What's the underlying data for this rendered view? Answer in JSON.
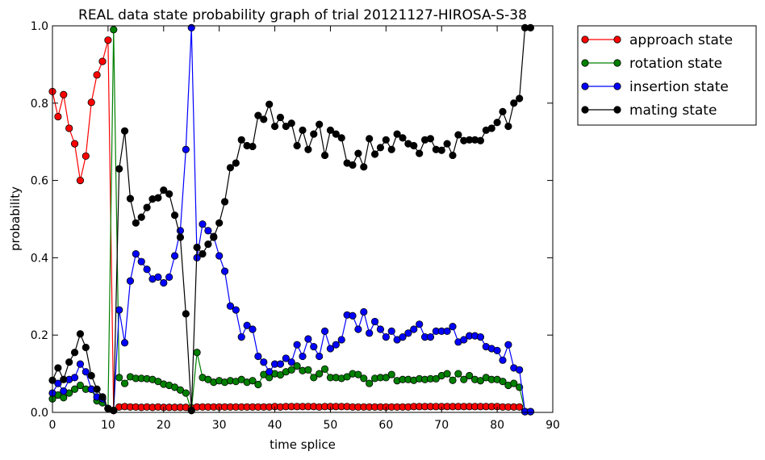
{
  "chart_data": {
    "type": "line",
    "title": "REAL data state probability graph of trial 20121127-HIROSA-S-38",
    "xlabel": "time splice",
    "ylabel": "probability",
    "xlim": [
      0,
      90
    ],
    "ylim": [
      0.0,
      1.0
    ],
    "xticks": [
      "0",
      "10",
      "20",
      "30",
      "40",
      "50",
      "60",
      "70",
      "80",
      "90"
    ],
    "yticks": [
      "0.0",
      "0.2",
      "0.4",
      "0.6",
      "0.8",
      "1.0"
    ],
    "grid": false,
    "legend_position": "outside-top-right",
    "series": [
      {
        "name": "approach state",
        "color": "#ff0000",
        "x": [
          0,
          1,
          2,
          3,
          4,
          5,
          6,
          7,
          8,
          9,
          10,
          11,
          12,
          13,
          14,
          15,
          16,
          17,
          18,
          19,
          20,
          21,
          22,
          23,
          24,
          25,
          26,
          27,
          28,
          29,
          30,
          31,
          32,
          33,
          34,
          35,
          36,
          37,
          38,
          39,
          40,
          41,
          42,
          43,
          44,
          45,
          46,
          47,
          48,
          49,
          50,
          51,
          52,
          53,
          54,
          55,
          56,
          57,
          58,
          59,
          60,
          61,
          62,
          63,
          64,
          65,
          66,
          67,
          68,
          69,
          70,
          71,
          72,
          73,
          74,
          75,
          76,
          77,
          78,
          79,
          80,
          81,
          82,
          83,
          84,
          85,
          86
        ],
        "values": [
          0.83,
          0.765,
          0.822,
          0.735,
          0.695,
          0.6,
          0.663,
          0.802,
          0.873,
          0.908,
          0.963,
          0.005,
          0.014,
          0.015,
          0.014,
          0.014,
          0.013,
          0.014,
          0.013,
          0.014,
          0.013,
          0.013,
          0.013,
          0.013,
          0.013,
          0.012,
          0.014,
          0.014,
          0.014,
          0.014,
          0.014,
          0.014,
          0.014,
          0.014,
          0.014,
          0.014,
          0.014,
          0.014,
          0.014,
          0.014,
          0.015,
          0.014,
          0.015,
          0.015,
          0.015,
          0.015,
          0.015,
          0.015,
          0.014,
          0.015,
          0.015,
          0.015,
          0.015,
          0.015,
          0.014,
          0.014,
          0.014,
          0.014,
          0.014,
          0.014,
          0.014,
          0.014,
          0.014,
          0.014,
          0.014,
          0.015,
          0.015,
          0.015,
          0.015,
          0.015,
          0.015,
          0.015,
          0.015,
          0.015,
          0.015,
          0.015,
          0.015,
          0.015,
          0.015,
          0.015,
          0.015,
          0.014,
          0.014,
          0.014,
          0.014,
          0.002,
          0.002
        ]
      },
      {
        "name": "rotation state",
        "color": "#008000",
        "x": [
          0,
          1,
          2,
          3,
          4,
          5,
          6,
          7,
          8,
          9,
          10,
          11,
          12,
          13,
          14,
          15,
          16,
          17,
          18,
          19,
          20,
          21,
          22,
          23,
          24,
          25,
          26,
          27,
          28,
          29,
          30,
          31,
          32,
          33,
          34,
          35,
          36,
          37,
          38,
          39,
          40,
          41,
          42,
          43,
          44,
          45,
          46,
          47,
          48,
          49,
          50,
          51,
          52,
          53,
          54,
          55,
          56,
          57,
          58,
          59,
          60,
          61,
          62,
          63,
          64,
          65,
          66,
          67,
          68,
          69,
          70,
          71,
          72,
          73,
          74,
          75,
          76,
          77,
          78,
          79,
          80,
          81,
          82,
          83,
          84,
          85,
          86
        ],
        "values": [
          0.035,
          0.045,
          0.038,
          0.05,
          0.06,
          0.07,
          0.06,
          0.06,
          0.03,
          0.025,
          0.01,
          0.99,
          0.09,
          0.075,
          0.092,
          0.088,
          0.088,
          0.087,
          0.085,
          0.08,
          0.073,
          0.07,
          0.065,
          0.058,
          0.05,
          0.005,
          0.155,
          0.09,
          0.085,
          0.078,
          0.082,
          0.078,
          0.082,
          0.08,
          0.085,
          0.078,
          0.082,
          0.072,
          0.098,
          0.09,
          0.1,
          0.097,
          0.105,
          0.11,
          0.12,
          0.108,
          0.11,
          0.09,
          0.1,
          0.112,
          0.09,
          0.09,
          0.088,
          0.092,
          0.1,
          0.098,
          0.088,
          0.075,
          0.088,
          0.09,
          0.09,
          0.098,
          0.082,
          0.085,
          0.085,
          0.083,
          0.087,
          0.085,
          0.087,
          0.087,
          0.095,
          0.1,
          0.083,
          0.1,
          0.085,
          0.095,
          0.085,
          0.082,
          0.09,
          0.085,
          0.085,
          0.08,
          0.07,
          0.075,
          0.065,
          0.002,
          0.002
        ]
      },
      {
        "name": "insertion state",
        "color": "#0000ff",
        "x": [
          0,
          1,
          2,
          3,
          4,
          5,
          6,
          7,
          8,
          9,
          10,
          11,
          12,
          13,
          14,
          15,
          16,
          17,
          18,
          19,
          20,
          21,
          22,
          23,
          24,
          25,
          26,
          27,
          28,
          29,
          30,
          31,
          32,
          33,
          34,
          35,
          36,
          37,
          38,
          39,
          40,
          41,
          42,
          43,
          44,
          45,
          46,
          47,
          48,
          49,
          50,
          51,
          52,
          53,
          54,
          55,
          56,
          57,
          58,
          59,
          60,
          61,
          62,
          63,
          64,
          65,
          66,
          67,
          68,
          69,
          70,
          71,
          72,
          73,
          74,
          75,
          76,
          77,
          78,
          79,
          80,
          81,
          82,
          83,
          84,
          85,
          86
        ],
        "values": [
          0.05,
          0.075,
          0.055,
          0.085,
          0.09,
          0.125,
          0.105,
          0.06,
          0.04,
          0.035,
          0.01,
          0.005,
          0.265,
          0.18,
          0.34,
          0.41,
          0.39,
          0.37,
          0.345,
          0.35,
          0.335,
          0.35,
          0.405,
          0.47,
          0.68,
          0.995,
          0.4,
          0.487,
          0.47,
          0.455,
          0.405,
          0.365,
          0.275,
          0.265,
          0.195,
          0.225,
          0.215,
          0.145,
          0.13,
          0.105,
          0.125,
          0.125,
          0.14,
          0.13,
          0.175,
          0.145,
          0.19,
          0.17,
          0.145,
          0.21,
          0.165,
          0.175,
          0.188,
          0.252,
          0.25,
          0.215,
          0.26,
          0.205,
          0.235,
          0.215,
          0.195,
          0.21,
          0.188,
          0.195,
          0.205,
          0.215,
          0.228,
          0.195,
          0.195,
          0.21,
          0.21,
          0.21,
          0.222,
          0.182,
          0.188,
          0.198,
          0.198,
          0.195,
          0.17,
          0.165,
          0.16,
          0.135,
          0.175,
          0.115,
          0.11,
          0.002,
          0.002
        ]
      },
      {
        "name": "mating state",
        "color": "#000000",
        "x": [
          0,
          1,
          2,
          3,
          4,
          5,
          6,
          7,
          8,
          9,
          10,
          11,
          12,
          13,
          14,
          15,
          16,
          17,
          18,
          19,
          20,
          21,
          22,
          23,
          24,
          25,
          26,
          27,
          28,
          29,
          30,
          31,
          32,
          33,
          34,
          35,
          36,
          37,
          38,
          39,
          40,
          41,
          42,
          43,
          44,
          45,
          46,
          47,
          48,
          49,
          50,
          51,
          52,
          53,
          54,
          55,
          56,
          57,
          58,
          59,
          60,
          61,
          62,
          63,
          64,
          65,
          66,
          67,
          68,
          69,
          70,
          71,
          72,
          73,
          74,
          75,
          76,
          77,
          78,
          79,
          80,
          81,
          82,
          83,
          84,
          85,
          86
        ],
        "values": [
          0.083,
          0.115,
          0.085,
          0.13,
          0.155,
          0.203,
          0.168,
          0.095,
          0.06,
          0.04,
          0.01,
          0.005,
          0.63,
          0.728,
          0.553,
          0.49,
          0.505,
          0.53,
          0.552,
          0.555,
          0.575,
          0.565,
          0.51,
          0.453,
          0.255,
          0.005,
          0.427,
          0.41,
          0.435,
          0.453,
          0.49,
          0.545,
          0.633,
          0.645,
          0.705,
          0.69,
          0.688,
          0.768,
          0.758,
          0.797,
          0.74,
          0.763,
          0.74,
          0.748,
          0.69,
          0.73,
          0.68,
          0.72,
          0.745,
          0.665,
          0.73,
          0.72,
          0.71,
          0.645,
          0.64,
          0.67,
          0.635,
          0.708,
          0.668,
          0.685,
          0.705,
          0.68,
          0.72,
          0.71,
          0.695,
          0.69,
          0.67,
          0.705,
          0.708,
          0.68,
          0.678,
          0.695,
          0.665,
          0.718,
          0.703,
          0.705,
          0.705,
          0.703,
          0.73,
          0.735,
          0.75,
          0.778,
          0.74,
          0.8,
          0.812,
          0.995,
          0.995
        ]
      }
    ]
  }
}
